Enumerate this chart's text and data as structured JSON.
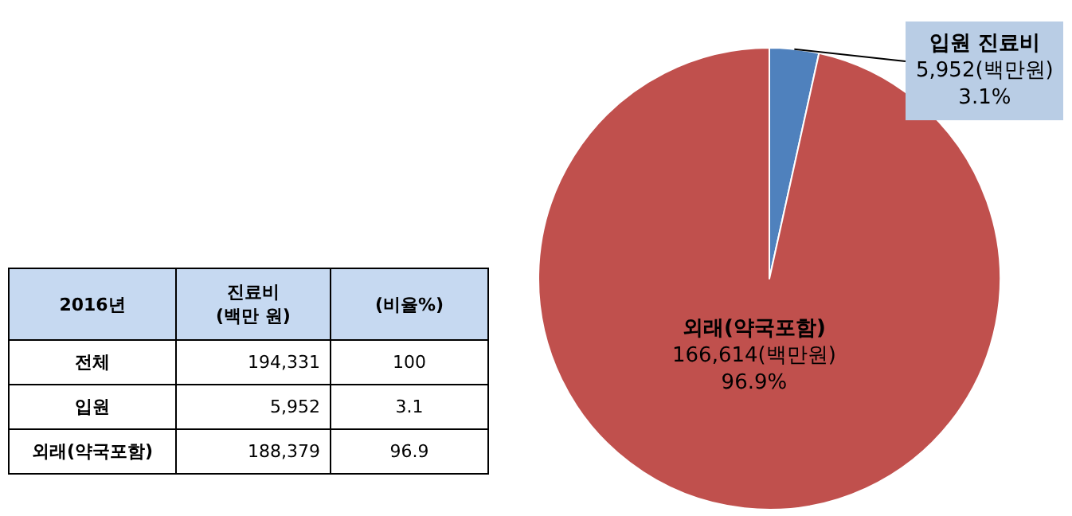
{
  "chart_data": [
    {
      "type": "pie",
      "categories": [
        "입원 진료비",
        "외래(약국포함)"
      ],
      "values": [
        5952,
        166614
      ],
      "colors": [
        "#4f81bd",
        "#c0504d"
      ],
      "value_labels": [
        "5,952(백만원)\n3.1%",
        "166,614(백만원)\n96.9%"
      ],
      "legend": false
    },
    {
      "type": "other",
      "categories": [
        "2016년",
        "진료비\n(백만 원)",
        "(비율%)"
      ],
      "y_categories": [
        "전체",
        "입원",
        "외래(약국포함)"
      ],
      "cell_labels": [
        [
          "194,331",
          "100"
        ],
        [
          "5,952",
          "3.1"
        ],
        [
          "188,379",
          "96.9"
        ]
      ]
    }
  ]
}
